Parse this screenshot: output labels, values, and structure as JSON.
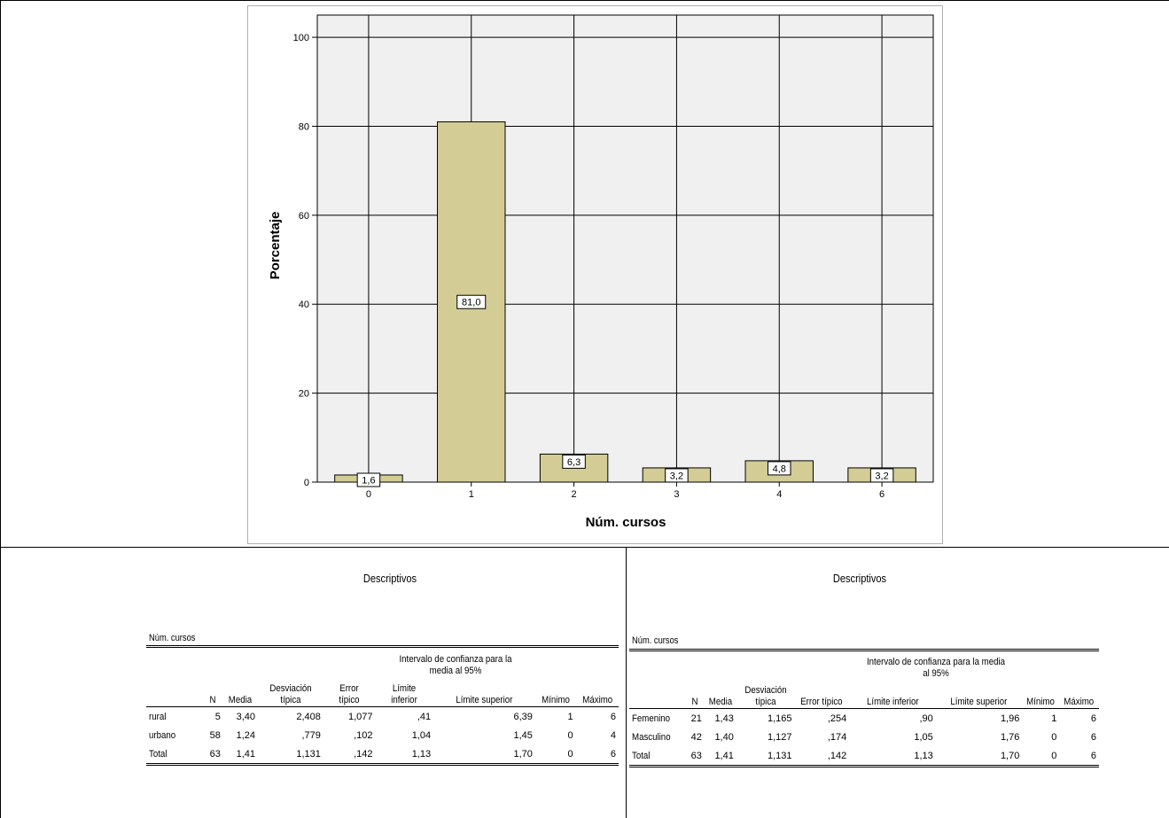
{
  "chart_data": {
    "type": "bar",
    "categories": [
      "0",
      "1",
      "2",
      "3",
      "4",
      "6"
    ],
    "values": [
      1.6,
      81.0,
      6.3,
      3.2,
      4.8,
      3.2
    ],
    "data_labels": [
      "1,6",
      "81,0",
      "6,3",
      "3,2",
      "4,8",
      "3,2"
    ],
    "xlabel": "Núm. cursos",
    "ylabel": "Porcentaje",
    "ylim": [
      0,
      105
    ],
    "yticks": [
      "0",
      "20",
      "40",
      "60",
      "80",
      "100"
    ],
    "ytick_values": [
      0,
      20,
      40,
      60,
      80,
      100
    ],
    "grid": true,
    "bar_color": "#d3cd95",
    "plot_bg": "#f0f0f0"
  },
  "tables": [
    {
      "title": "Descriptivos",
      "variable": "Núm. cursos",
      "ci_header": "Intervalo de confianza para la media al 95%",
      "columns": [
        "N",
        "Media",
        "Desviación típica",
        "Error típico",
        "Límite inferior",
        "Límite superior",
        "Mínimo",
        "Máximo"
      ],
      "rows": [
        {
          "label": "rural",
          "cells": [
            "5",
            "3,40",
            "2,408",
            "1,077",
            ",41",
            "6,39",
            "1",
            "6"
          ]
        },
        {
          "label": "urbano",
          "cells": [
            "58",
            "1,24",
            ",779",
            ",102",
            "1,04",
            "1,45",
            "0",
            "4"
          ]
        },
        {
          "label": "Total",
          "cells": [
            "63",
            "1,41",
            "1,131",
            ",142",
            "1,13",
            "1,70",
            "0",
            "6"
          ]
        }
      ]
    },
    {
      "title": "Descriptivos",
      "variable": "Núm. cursos",
      "ci_header": "Intervalo de confianza para la media al 95%",
      "columns": [
        "N",
        "Media",
        "Desviación típica",
        "Error típico",
        "Límite inferior",
        "Límite superior",
        "Mínimo",
        "Máximo"
      ],
      "rows": [
        {
          "label": "Femenino",
          "cells": [
            "21",
            "1,43",
            "1,165",
            ",254",
            ",90",
            "1,96",
            "1",
            "6"
          ]
        },
        {
          "label": "Masculino",
          "cells": [
            "42",
            "1,40",
            "1,127",
            ",174",
            "1,05",
            "1,76",
            "0",
            "6"
          ]
        },
        {
          "label": "Total",
          "cells": [
            "63",
            "1,41",
            "1,131",
            ",142",
            "1,13",
            "1,70",
            "0",
            "6"
          ]
        }
      ]
    }
  ]
}
